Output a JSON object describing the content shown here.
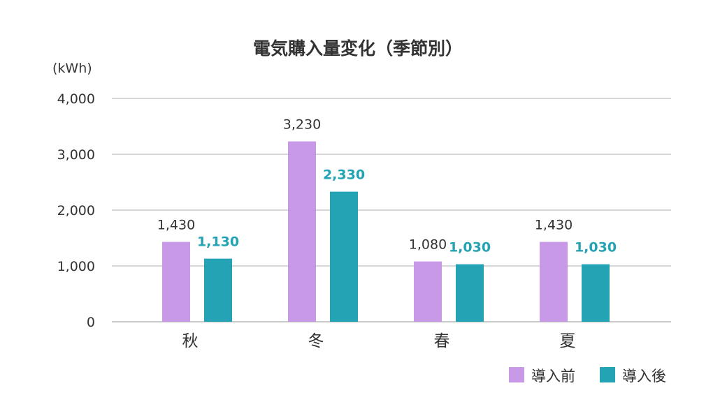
{
  "chart_data": {
    "type": "bar",
    "title": "電気購入量変化（季節別）",
    "ylabel": "(kWh)",
    "xlabel": "",
    "categories": [
      "秋",
      "冬",
      "春",
      "夏"
    ],
    "series": [
      {
        "name": "導入前",
        "values": [
          1430,
          3230,
          1080,
          1430
        ],
        "color": "#c799e6"
      },
      {
        "name": "導入後",
        "values": [
          1130,
          2330,
          1030,
          1030
        ],
        "color": "#23a3b3"
      }
    ],
    "data_labels": [
      [
        "1,430",
        "3,230",
        "1,080",
        "1,430"
      ],
      [
        "1,130",
        "2,330",
        "1,030",
        "1,030"
      ]
    ],
    "ylim": [
      0,
      4000
    ],
    "yticks": [
      "0",
      "1,000",
      "2,000",
      "3,000",
      "4,000"
    ],
    "ytick_values": [
      0,
      1000,
      2000,
      3000,
      4000
    ],
    "grid": true,
    "legend": "bottom-right"
  }
}
